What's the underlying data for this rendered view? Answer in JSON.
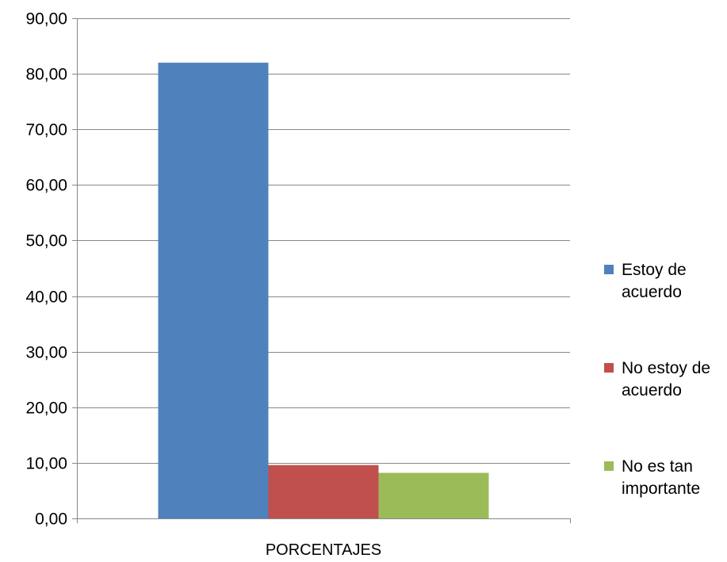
{
  "chart_data": {
    "type": "bar",
    "categories": [
      "PORCENTAJES"
    ],
    "series": [
      {
        "name": "Estoy de acuerdo",
        "name_lines": [
          "Estoy de",
          "acuerdo"
        ],
        "values": [
          82.0
        ],
        "color": "#4F81BD"
      },
      {
        "name": "No estoy de acuerdo",
        "name_lines": [
          "No estoy de",
          "acuerdo"
        ],
        "values": [
          9.6
        ],
        "color": "#C0504D"
      },
      {
        "name": "No es tan importante",
        "name_lines": [
          "No es tan",
          "importante"
        ],
        "values": [
          8.2
        ],
        "color": "#9BBB59"
      }
    ],
    "ylim": [
      0,
      90
    ],
    "ytick_step": 10,
    "ytick_labels": [
      "0,00",
      "10,00",
      "20,00",
      "30,00",
      "40,00",
      "50,00",
      "60,00",
      "70,00",
      "80,00",
      "90,00"
    ],
    "xlabel": "",
    "ylabel": "",
    "title": "",
    "grid": true,
    "legend_position": "right"
  }
}
